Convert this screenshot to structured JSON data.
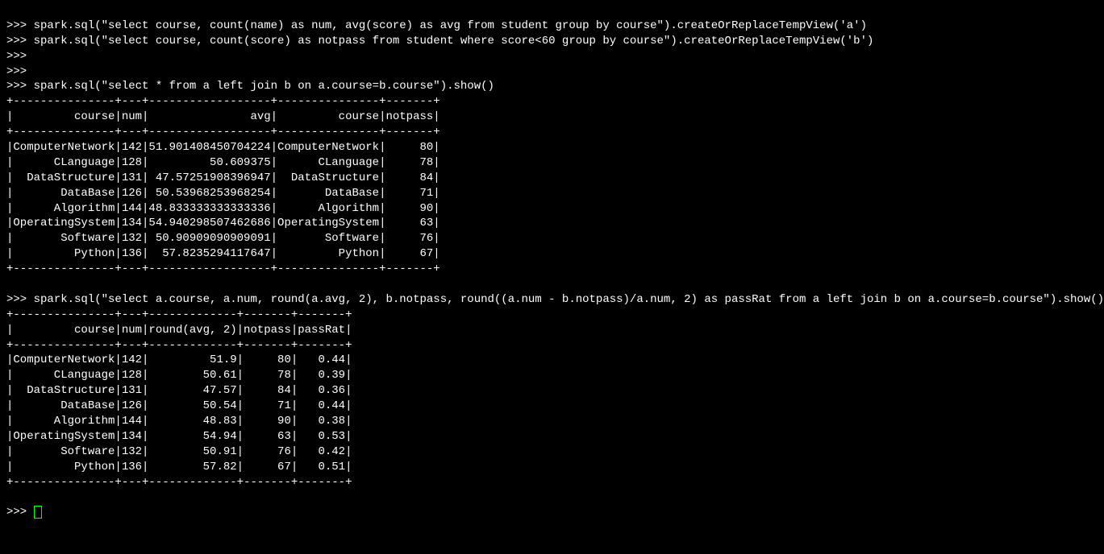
{
  "prompt": ">>> ",
  "lines": {
    "l1": "spark.sql(\"select course, count(name) as num, avg(score) as avg from student group by course\").createOrReplaceTempView('a')",
    "l2": "spark.sql(\"select course, count(score) as notpass from student where score<60 group by course\").createOrReplaceTempView('b')",
    "l3": "",
    "l4": "",
    "l5": "spark.sql(\"select * from a left join b on a.course=b.course\").show()",
    "l6": "spark.sql(\"select a.course, a.num, round(a.avg, 2), b.notpass, round((a.num - b.notpass)/a.num, 2) as passRat from a left join b on a.course=b.course\").show()"
  },
  "table1": {
    "sep": "+---------------+---+------------------+---------------+-------+",
    "header": "|         course|num|               avg|         course|notpass|",
    "rows": [
      "|ComputerNetwork|142|51.901408450704224|ComputerNetwork|     80|",
      "|      CLanguage|128|         50.609375|      CLanguage|     78|",
      "|  DataStructure|131| 47.57251908396947|  DataStructure|     84|",
      "|       DataBase|126| 50.53968253968254|       DataBase|     71|",
      "|      Algorithm|144|48.833333333333336|      Algorithm|     90|",
      "|OperatingSystem|134|54.940298507462686|OperatingSystem|     63|",
      "|       Software|132| 50.90909090909091|       Software|     76|",
      "|         Python|136|  57.8235294117647|         Python|     67|"
    ]
  },
  "table2": {
    "sep": "+---------------+---+-------------+-------+-------+",
    "header": "|         course|num|round(avg, 2)|notpass|passRat|",
    "rows": [
      "|ComputerNetwork|142|         51.9|     80|   0.44|",
      "|      CLanguage|128|        50.61|     78|   0.39|",
      "|  DataStructure|131|        47.57|     84|   0.36|",
      "|       DataBase|126|        50.54|     71|   0.44|",
      "|      Algorithm|144|        48.83|     90|   0.38|",
      "|OperatingSystem|134|        54.94|     63|   0.53|",
      "|       Software|132|        50.91|     76|   0.42|",
      "|         Python|136|        57.82|     67|   0.51|"
    ]
  }
}
